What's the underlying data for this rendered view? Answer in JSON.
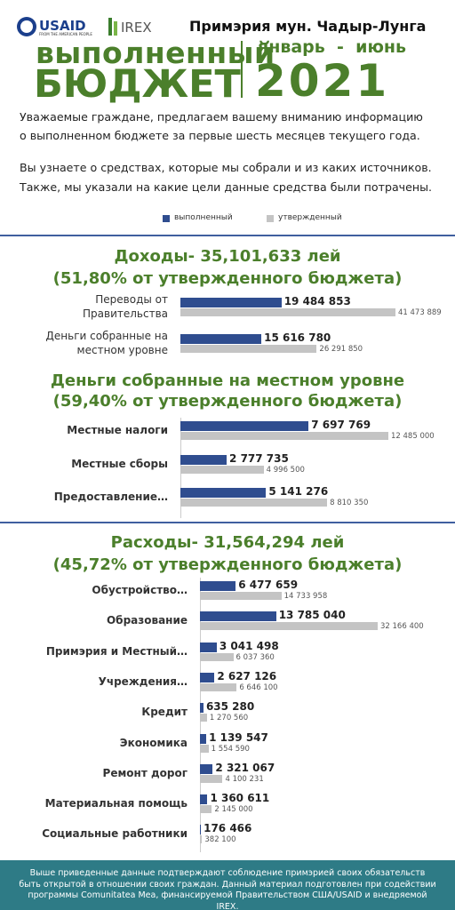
{
  "header": {
    "usaid": "USAID",
    "usaid_tagline": "FROM THE AMERICAN PEOPLE",
    "irex": "IREX",
    "org": "Примэрия мун. Чадыр-Лунга",
    "title_line1": "выполненный",
    "title_line2": "БЮДЖЕТ",
    "period": "январь  -  июнь",
    "year": "2021"
  },
  "intro": [
    "Уважаемые граждане, предлагаем вашему вниманию информацию",
    "о выполненном бюджете за первые шесть месяцев текущего года.",
    "Вы узнаете о средствах, которые мы собрали и из каких источников.",
    "Также, мы указали на какие цели данные средства были потрачены."
  ],
  "legend": [
    {
      "name": "выполненный",
      "color": "#2f4d8f"
    },
    {
      "name": "утвержденный",
      "color": "#c4c4c4"
    }
  ],
  "chart_data": [
    {
      "type": "bar",
      "title": "Доходы- 35,101,633 лей",
      "subtitle": "(51,80% от утвержденного бюджета)",
      "categories": [
        "Переводы от Правительства",
        "Деньги собранные на местном уровне"
      ],
      "series": [
        {
          "values": [
            19484853,
            15616780
          ],
          "value_labels": [
            "19 484 853",
            "15 616 780"
          ]
        },
        {
          "values": [
            41473889,
            26291850
          ],
          "value_labels": [
            "41 473 889",
            "26 291 850"
          ]
        }
      ]
    },
    {
      "type": "bar",
      "title": "Деньги собранные на местном уровне",
      "subtitle": "(59,40% от утвержденного бюджета)",
      "categories": [
        "Местные налоги",
        "Местные сборы",
        "Предоставление…"
      ],
      "series": [
        {
          "values": [
            7697769,
            2777735,
            5141276
          ],
          "value_labels": [
            "7 697 769",
            "2 777 735",
            "5 141 276"
          ]
        },
        {
          "values": [
            12485000,
            4996500,
            8810350
          ],
          "value_labels": [
            "12 485 000",
            "4 996 500",
            "8 810 350"
          ]
        }
      ]
    },
    {
      "type": "bar",
      "title": "Расходы- 31,564,294 лей",
      "subtitle": "(45,72% от утвержденного бюджета)",
      "categories": [
        "Обустройство…",
        "Образование",
        "Примэрия и Местный…",
        "Учреждения…",
        "Кредит",
        "Экономика",
        "Ремонт дорог",
        "Материальная помощь",
        "Социальные работники"
      ],
      "series": [
        {
          "values": [
            6477659,
            13785040,
            3041498,
            2627126,
            635280,
            1139547,
            2321067,
            1360611,
            176466
          ],
          "value_labels": [
            "6 477 659",
            "13 785 040",
            "3 041 498",
            "2 627 126",
            "635 280",
            "1 139 547",
            "2 321 067",
            "1 360 611",
            "176 466"
          ]
        },
        {
          "values": [
            14733958,
            32166400,
            6037360,
            6646100,
            1270560,
            1554590,
            4100231,
            2145000,
            382100
          ],
          "value_labels": [
            "14 733 958",
            "32 166 400",
            "6 037 360",
            "6 646 100",
            "1 270 560",
            "1 554 590",
            "4 100 231",
            "2 145 000",
            "382 100"
          ]
        }
      ]
    }
  ],
  "footer": "Выше приведенные данные подтверждают соблюдение примэрией своих обязательств быть открытой в отношении своих граждан. Данный материал подготовлен при содействии программы Comunitatea Mea, финансируемой Правительством США/USAID и внедряемой IREX."
}
